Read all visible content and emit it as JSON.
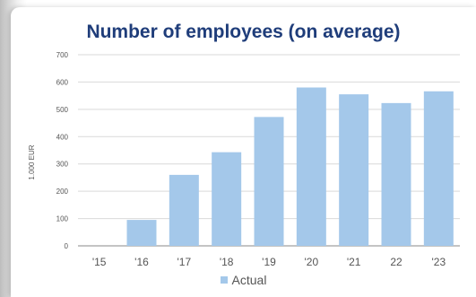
{
  "chart_data": {
    "type": "bar",
    "title": "Number of employees (on average)",
    "ylabel": "1.000 EUR",
    "xlabel": "",
    "categories": [
      "'15",
      "'16",
      "'17",
      "'18",
      "'19",
      "'20",
      "'21",
      "22",
      "'23"
    ],
    "series": [
      {
        "name": "Actual",
        "values": [
          0,
          95,
          260,
          343,
          472,
          580,
          555,
          523,
          566
        ],
        "color": "#a4c8ea"
      }
    ],
    "ylim": [
      0,
      700
    ],
    "yticks": [
      "0",
      "100",
      "200",
      "300",
      "400",
      "500",
      "600",
      "700"
    ],
    "grid": true,
    "legend_position": "bottom"
  }
}
